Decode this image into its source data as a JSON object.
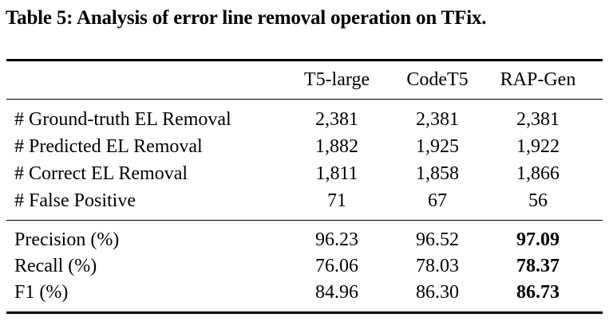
{
  "caption": "Table 5: Analysis of error line removal operation on TFix.",
  "colors": {
    "text": "#000000",
    "background": "#ffffff",
    "rule": "#000000"
  },
  "table": {
    "columns": [
      "T5-large",
      "CodeT5",
      "RAP-Gen"
    ],
    "sections": [
      {
        "rows": [
          {
            "label": "# Ground-truth EL Removal",
            "values": [
              "2,381",
              "2,381",
              "2,381"
            ]
          },
          {
            "label": "# Predicted EL Removal",
            "values": [
              "1,882",
              "1,925",
              "1,922"
            ]
          },
          {
            "label": "# Correct EL Removal",
            "values": [
              "1,811",
              "1,858",
              "1,866"
            ]
          },
          {
            "label": "# False Positive",
            "values": [
              "71",
              "67",
              "56"
            ]
          }
        ]
      },
      {
        "rows": [
          {
            "label": "Precision (%)",
            "values": [
              "96.23",
              "96.52",
              "97.09"
            ]
          },
          {
            "label": "Recall (%)",
            "values": [
              "76.06",
              "78.03",
              "78.37"
            ]
          },
          {
            "label": "F1 (%)",
            "values": [
              "84.96",
              "86.30",
              "86.73"
            ]
          }
        ]
      }
    ]
  }
}
